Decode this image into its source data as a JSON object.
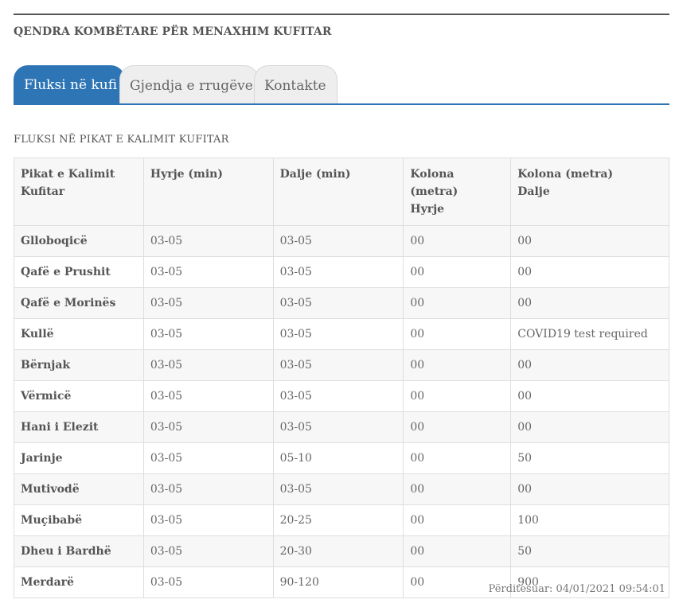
{
  "header": {
    "title": "QENDRA KOMBËTARE PËR MENAXHIM KUFITAR"
  },
  "tabs": [
    {
      "label": "Fluksi në kufi",
      "active": true
    },
    {
      "label": "Gjendja e rrugëve",
      "active": false
    },
    {
      "label": "Kontakte",
      "active": false
    }
  ],
  "section": {
    "title": "FLUKSI NË PIKAT E KALIMIT KUFITAR"
  },
  "table": {
    "headers": [
      "Pikat e Kalimit\nKufitar",
      "Hyrje (min)",
      "Dalje (min)",
      "Kolona (metra)\nHyrje",
      "Kolona (metra)\nDalje"
    ],
    "rows": [
      [
        "Glloboqicë",
        "03-05",
        "03-05",
        "00",
        "00"
      ],
      [
        "Qafë e Prushit",
        "03-05",
        "03-05",
        "00",
        "00"
      ],
      [
        "Qafë e Morinës",
        "03-05",
        "03-05",
        "00",
        "00"
      ],
      [
        "Kullë",
        "03-05",
        "03-05",
        "00",
        "COVID19 test required"
      ],
      [
        "Bërnjak",
        "03-05",
        "03-05",
        "00",
        "00"
      ],
      [
        "Vërmicë",
        "03-05",
        "03-05",
        "00",
        "00"
      ],
      [
        "Hani i Elezit",
        "03-05",
        "03-05",
        "00",
        "00"
      ],
      [
        "Jarinje",
        "03-05",
        "05-10",
        "00",
        "50"
      ],
      [
        "Mutivodë",
        "03-05",
        "03-05",
        "00",
        "00"
      ],
      [
        "Muçibabë",
        "03-05",
        "20-25",
        "00",
        "100"
      ],
      [
        "Dheu i Bardhë",
        "03-05",
        "20-30",
        "00",
        "50"
      ],
      [
        "Merdarë",
        "03-05",
        "90-120",
        "00",
        "900"
      ]
    ]
  },
  "footer": {
    "updated": "Përditesuar: 04/01/2021 09:54:01"
  },
  "colors": {
    "accent": "#2e75b6",
    "text": "#555555",
    "border": "#dedede",
    "stripe": "#f7f7f7"
  }
}
